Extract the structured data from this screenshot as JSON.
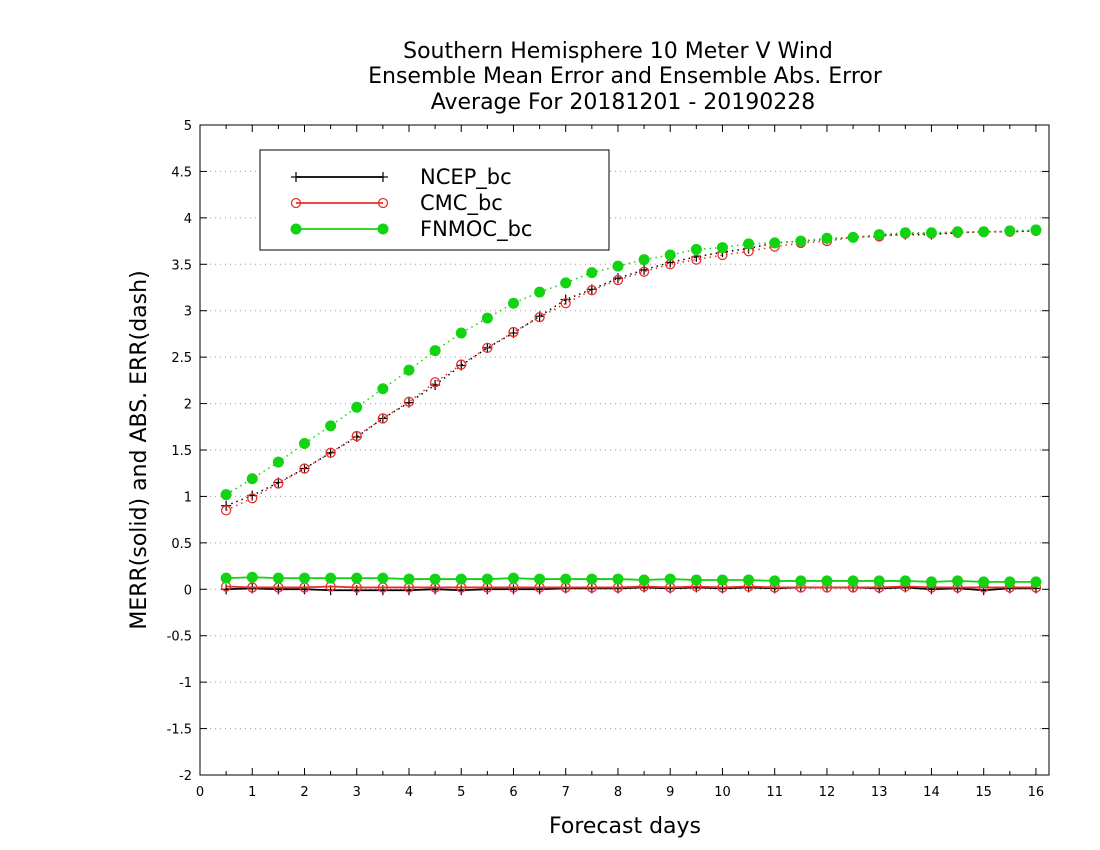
{
  "chart_data": {
    "type": "line",
    "title": [
      "Southern Hemisphere 10 Meter V Wind",
      "Ensemble Mean Error and Ensemble Abs. Error",
      "Average For 20181201 - 20190228"
    ],
    "xlabel": "Forecast days",
    "ylabel": "MERR(solid) and ABS. ERR(dash)",
    "xlim": [
      0,
      16.25
    ],
    "ylim": [
      -2,
      5
    ],
    "xticks": [
      0,
      1,
      2,
      3,
      4,
      5,
      6,
      7,
      8,
      9,
      10,
      11,
      12,
      13,
      14,
      15,
      16
    ],
    "yticks": [
      -2,
      -1.5,
      -1,
      -0.5,
      0,
      0.5,
      1,
      1.5,
      2,
      2.5,
      3,
      3.5,
      4,
      4.5,
      5
    ],
    "ytick_labels": [
      "-2",
      "-1.5",
      "-1",
      "-0.5",
      "0",
      "0.5",
      "1",
      "1.5",
      "2",
      "2.5",
      "3",
      "3.5",
      "4",
      "4.5",
      "5"
    ],
    "grid": "horizontal dotted",
    "legend_position": "top-left",
    "x": [
      0.5,
      1,
      1.5,
      2,
      2.5,
      3,
      3.5,
      4,
      4.5,
      5,
      5.5,
      6,
      6.5,
      7,
      7.5,
      8,
      8.5,
      9,
      9.5,
      10,
      10.5,
      11,
      11.5,
      12,
      12.5,
      13,
      13.5,
      14,
      14.5,
      15,
      15.5,
      16
    ],
    "series": [
      {
        "name": "NCEP_bc",
        "color": "#000000",
        "marker": "plus",
        "merr": [
          0.0,
          0.01,
          0.0,
          0.0,
          -0.01,
          -0.01,
          -0.01,
          -0.01,
          0.0,
          -0.01,
          0.0,
          0.0,
          0.0,
          0.01,
          0.01,
          0.01,
          0.02,
          0.01,
          0.02,
          0.01,
          0.02,
          0.01,
          0.02,
          0.02,
          0.02,
          0.01,
          0.02,
          0.0,
          0.01,
          -0.01,
          0.01,
          0.01
        ],
        "abs_err": [
          0.9,
          1.01,
          1.15,
          1.3,
          1.47,
          1.64,
          1.84,
          2.01,
          2.2,
          2.41,
          2.6,
          2.76,
          2.94,
          3.12,
          3.23,
          3.35,
          3.44,
          3.52,
          3.58,
          3.63,
          3.67,
          3.73,
          3.75,
          3.77,
          3.79,
          3.81,
          3.82,
          3.82,
          3.84,
          3.85,
          3.85,
          3.86
        ]
      },
      {
        "name": "CMC_bc",
        "color": "#e8312f",
        "marker": "open-circle",
        "merr": [
          0.03,
          0.02,
          0.02,
          0.02,
          0.03,
          0.02,
          0.02,
          0.02,
          0.02,
          0.02,
          0.02,
          0.02,
          0.02,
          0.02,
          0.02,
          0.02,
          0.03,
          0.02,
          0.03,
          0.02,
          0.03,
          0.02,
          0.02,
          0.02,
          0.02,
          0.02,
          0.03,
          0.02,
          0.02,
          0.02,
          0.02,
          0.02
        ],
        "abs_err": [
          0.85,
          0.98,
          1.14,
          1.3,
          1.47,
          1.65,
          1.84,
          2.02,
          2.23,
          2.42,
          2.6,
          2.77,
          2.93,
          3.08,
          3.22,
          3.33,
          3.42,
          3.5,
          3.55,
          3.6,
          3.64,
          3.69,
          3.73,
          3.75,
          3.79,
          3.8,
          3.83,
          3.83,
          3.84,
          3.85,
          3.85,
          3.86
        ]
      },
      {
        "name": "FNMOC_bc",
        "color": "#12d312",
        "marker": "filled-circle",
        "merr": [
          0.12,
          0.13,
          0.12,
          0.12,
          0.12,
          0.12,
          0.12,
          0.11,
          0.11,
          0.11,
          0.11,
          0.12,
          0.11,
          0.11,
          0.11,
          0.11,
          0.1,
          0.11,
          0.1,
          0.1,
          0.1,
          0.09,
          0.09,
          0.09,
          0.09,
          0.09,
          0.09,
          0.08,
          0.09,
          0.08,
          0.08,
          0.08
        ],
        "abs_err": [
          1.02,
          1.19,
          1.37,
          1.57,
          1.76,
          1.96,
          2.16,
          2.36,
          2.57,
          2.76,
          2.92,
          3.08,
          3.2,
          3.3,
          3.41,
          3.48,
          3.55,
          3.6,
          3.66,
          3.68,
          3.72,
          3.73,
          3.75,
          3.78,
          3.79,
          3.82,
          3.84,
          3.84,
          3.85,
          3.85,
          3.86,
          3.87
        ]
      }
    ]
  }
}
